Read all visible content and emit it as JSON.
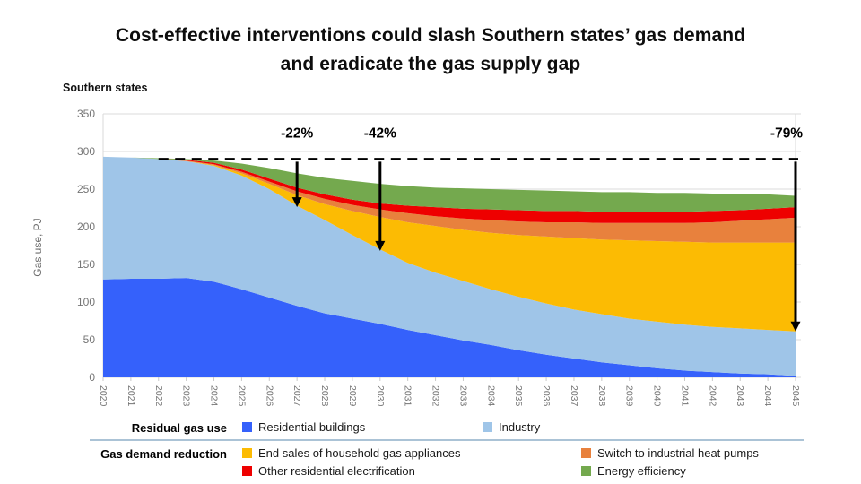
{
  "title": {
    "line1": "Cost-effective interventions could slash Southern states’ gas demand",
    "line2": "and eradicate the gas supply gap"
  },
  "subtitle": "Southern states",
  "chart_data": {
    "type": "area",
    "stacked": true,
    "title": "Southern states",
    "ylabel": "Gas use, PJ",
    "ylim": [
      0,
      350
    ],
    "ytick_step": 50,
    "grid": true,
    "x": [
      2020,
      2021,
      2022,
      2023,
      2024,
      2025,
      2026,
      2027,
      2028,
      2029,
      2030,
      2031,
      2032,
      2033,
      2034,
      2035,
      2036,
      2037,
      2038,
      2039,
      2040,
      2041,
      2042,
      2043,
      2044,
      2045
    ],
    "series": [
      {
        "name": "Residential buildings",
        "color": "#3561FB",
        "values": [
          130,
          131,
          131,
          132,
          127,
          117,
          106,
          95,
          85,
          78,
          71,
          63,
          56,
          49,
          43,
          36,
          30,
          25,
          20,
          16,
          12,
          9,
          7,
          5,
          4,
          2
        ]
      },
      {
        "name": "Industry",
        "color": "#9FC5E8",
        "values": [
          163,
          161,
          159,
          155,
          154,
          151,
          144,
          133,
          124,
          111,
          99,
          89,
          83,
          79,
          74,
          71,
          68,
          65,
          64,
          62,
          62,
          61,
          60,
          60,
          59,
          59
        ]
      },
      {
        "name": "End sales of household gas appliances",
        "color": "#FCBB03",
        "values": [
          0,
          0,
          0,
          0,
          1,
          3,
          7,
          14,
          21,
          32,
          43,
          54,
          62,
          68,
          75,
          82,
          89,
          95,
          99,
          104,
          107,
          110,
          112,
          114,
          116,
          118
        ]
      },
      {
        "name": "Switch to industrial heat pumps",
        "color": "#E8813D",
        "values": [
          0,
          0,
          0,
          1,
          1,
          2,
          3,
          5,
          7,
          8,
          10,
          12,
          13,
          15,
          17,
          18,
          19,
          21,
          22,
          23,
          24,
          25,
          27,
          29,
          31,
          33
        ]
      },
      {
        "name": "Other residential electrification",
        "color": "#EE0000",
        "values": [
          0,
          0,
          0,
          1,
          2,
          3,
          4,
          5,
          6,
          7,
          8,
          10,
          12,
          13,
          14,
          15,
          15,
          15,
          15,
          15,
          15,
          15,
          15,
          14,
          14,
          14
        ]
      },
      {
        "name": "Energy efficiency",
        "color": "#74A94E",
        "values": [
          0,
          0,
          1,
          1,
          3,
          8,
          14,
          19,
          22,
          25,
          26,
          26,
          26,
          27,
          27,
          27,
          27,
          26,
          26,
          26,
          25,
          25,
          23,
          22,
          19,
          15
        ]
      }
    ],
    "baseline": {
      "value": 290,
      "style": "dashed",
      "x_start": 2022,
      "x_end": 2045
    },
    "annotations": [
      {
        "label": "-22%",
        "year": 2027,
        "target_value": 226
      },
      {
        "label": "-42%",
        "year": 2030,
        "target_value": 168
      },
      {
        "label": "-79%",
        "year": 2045,
        "target_value": 61
      }
    ],
    "legend_position": "bottom"
  },
  "legend": {
    "rows": [
      {
        "label": "Residual gas use",
        "items": [
          {
            "name": "Residential buildings",
            "color": "#3561FB"
          },
          {
            "name": "Industry",
            "color": "#9FC5E8"
          }
        ]
      },
      {
        "label": "Gas demand reduction",
        "items": [
          {
            "name": "End sales of household gas appliances",
            "color": "#FCBB03"
          },
          {
            "name": "Switch to industrial heat pumps",
            "color": "#E8813D"
          },
          {
            "name": "Other residential electrification",
            "color": "#EE0000"
          },
          {
            "name": "Energy efficiency",
            "color": "#74A94E"
          }
        ]
      }
    ]
  },
  "colors": {
    "grid": "#E2E2E2",
    "axis_text": "#757575",
    "plot_border": "#D9D9D9",
    "annotation": "#000000",
    "legend_divider": "#ABC3D6"
  }
}
